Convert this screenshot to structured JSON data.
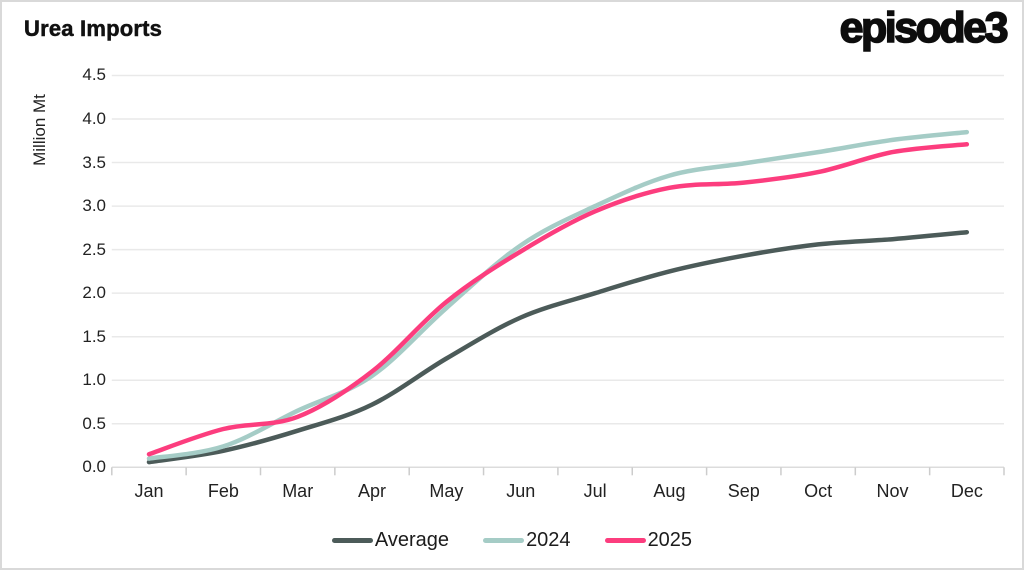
{
  "header": {
    "logo_text": "episode3"
  },
  "colors": {
    "average": "#4C5B59",
    "y2024": "#A5CCC6",
    "y2025": "#FC3D7E",
    "grid": "#e9e9e9",
    "axis": "#dcdcdc",
    "tick": "#cccccc",
    "text": "#222222",
    "title": "#111111"
  },
  "chart_data": {
    "type": "line",
    "title": "Urea Imports",
    "ylabel": "Million Mt",
    "xlabel": "",
    "categories": [
      "Jan",
      "Feb",
      "Mar",
      "Apr",
      "May",
      "Jun",
      "Jul",
      "Aug",
      "Sep",
      "Oct",
      "Nov",
      "Dec"
    ],
    "yticks": [
      "0.0",
      "0.5",
      "1.0",
      "1.5",
      "2.0",
      "2.5",
      "3.0",
      "3.5",
      "4.0",
      "4.5"
    ],
    "ylim": [
      0,
      4.5
    ],
    "ytick_step": 0.5,
    "grid": "horizontal",
    "legend_position": "bottom",
    "series": [
      {
        "name": "Average",
        "color": "#4C5B59",
        "values": [
          0.06,
          0.19,
          0.42,
          0.72,
          1.25,
          1.72,
          2.0,
          2.25,
          2.43,
          2.56,
          2.62,
          2.7
        ]
      },
      {
        "name": "2024",
        "color": "#A5CCC6",
        "values": [
          0.1,
          0.24,
          0.65,
          1.05,
          1.83,
          2.55,
          3.0,
          3.35,
          3.49,
          3.62,
          3.76,
          3.85
        ]
      },
      {
        "name": "2025",
        "color": "#FC3D7E",
        "values": [
          0.15,
          0.44,
          0.58,
          1.1,
          1.9,
          2.48,
          2.94,
          3.21,
          3.27,
          3.39,
          3.62,
          3.71
        ]
      }
    ]
  }
}
